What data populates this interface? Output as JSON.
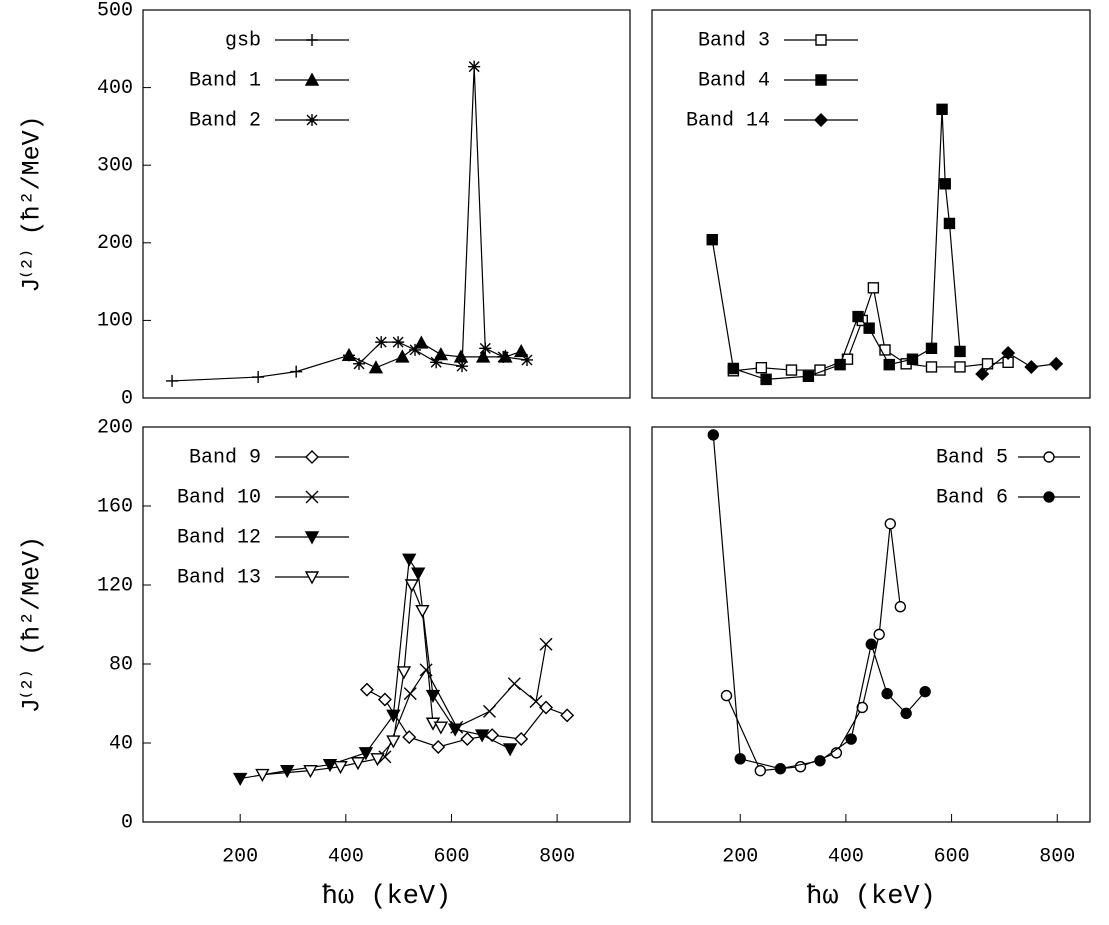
{
  "chart_data": [
    {
      "type": "line",
      "ylabel": "J⁽²⁾ (ħ²/MeV)",
      "xlim": [
        16,
        938
      ],
      "ylim": [
        0,
        500
      ],
      "yticks": [
        0,
        100,
        200,
        300,
        400,
        500
      ],
      "legend": "upper left",
      "series": [
        {
          "name": "gsb",
          "color": "#000000",
          "marker": "plus",
          "x": [
            71,
            234,
            306,
            406
          ],
          "values": [
            22,
            27,
            34,
            55
          ]
        },
        {
          "name": "Band 1",
          "color": "#000000",
          "marker": "triangle",
          "x": [
            406,
            457,
            507,
            543,
            580,
            618,
            660,
            702,
            732
          ],
          "values": [
            55,
            39,
            53,
            71,
            56,
            53,
            53,
            53,
            60
          ]
        },
        {
          "name": "Band 2",
          "color": "#000000",
          "marker": "asterisk",
          "x": [
            425,
            467,
            499,
            531,
            571,
            620,
            643,
            664,
            698,
            743
          ],
          "values": [
            44,
            72,
            72,
            62,
            46,
            41,
            427,
            64,
            53,
            49
          ]
        }
      ]
    },
    {
      "type": "line",
      "xlim": [
        33,
        862
      ],
      "ylim": [
        0,
        500
      ],
      "legend": "upper left",
      "series": [
        {
          "name": "Band 3",
          "color": "#000000",
          "marker": "square-open",
          "x": [
            187,
            240,
            297,
            351,
            403,
            431,
            452,
            474,
            514,
            562,
            616,
            668,
            707
          ],
          "values": [
            35,
            39,
            36,
            36,
            50,
            100,
            142,
            62,
            44,
            40,
            40,
            44,
            46
          ]
        },
        {
          "name": "Band 4",
          "color": "#000000",
          "marker": "square",
          "x": [
            147,
            187,
            249,
            329,
            389,
            423,
            444,
            482,
            526,
            562,
            582,
            588,
            596,
            616
          ],
          "values": [
            204,
            38,
            24,
            28,
            43,
            105,
            90,
            43,
            50,
            64,
            372,
            276,
            225,
            60
          ]
        },
        {
          "name": "Band 14",
          "color": "#000000",
          "marker": "diamond",
          "x": [
            658,
            707,
            751,
            798
          ],
          "values": [
            31,
            58,
            40,
            44
          ]
        }
      ]
    },
    {
      "type": "line",
      "xlabel": "ħω (keV)",
      "ylabel": "J⁽²⁾ (ħ²/MeV)",
      "xlim": [
        16,
        938
      ],
      "ylim": [
        0,
        200
      ],
      "xticks": [
        200,
        400,
        600,
        800
      ],
      "yticks": [
        0,
        40,
        80,
        120,
        160,
        200
      ],
      "legend": "upper left",
      "series": [
        {
          "name": "Band 9",
          "color": "#000000",
          "marker": "diamond-open",
          "x": [
            440,
            474,
            520,
            575,
            630,
            677,
            732,
            779,
            819
          ],
          "values": [
            67,
            62,
            43,
            38,
            42,
            44,
            42,
            58,
            54
          ]
        },
        {
          "name": "Band 10",
          "color": "#000000",
          "marker": "x",
          "x": [
            474,
            522,
            552,
            610,
            672,
            719,
            760,
            779
          ],
          "values": [
            33,
            65,
            77,
            48,
            56,
            70,
            61,
            90
          ]
        },
        {
          "name": "Band 12",
          "color": "#000000",
          "marker": "triangle-down",
          "x": [
            200,
            289,
            370,
            438,
            490,
            520,
            537,
            565,
            607,
            658,
            711
          ],
          "values": [
            22,
            26,
            29,
            35,
            54,
            133,
            126,
            64,
            47,
            44,
            37
          ]
        },
        {
          "name": "Band 13",
          "color": "#000000",
          "marker": "triangle-down-open",
          "x": [
            242,
            333,
            390,
            423,
            460,
            490,
            510,
            525,
            545,
            565,
            580
          ],
          "values": [
            24,
            26,
            28,
            30,
            32,
            41,
            76,
            120,
            107,
            50,
            48
          ]
        }
      ]
    },
    {
      "type": "line",
      "xlabel": "ħω (keV)",
      "xlim": [
        33,
        862
      ],
      "ylim": [
        0,
        200
      ],
      "xticks": [
        200,
        400,
        600,
        800
      ],
      "legend": "upper right",
      "series": [
        {
          "name": "Band 5",
          "color": "#000000",
          "marker": "circle-open",
          "x": [
            174,
            238,
            314,
            382,
            431,
            463,
            484,
            503
          ],
          "values": [
            64,
            26,
            28,
            35,
            58,
            95,
            151,
            109
          ]
        },
        {
          "name": "Band 6",
          "color": "#000000",
          "marker": "circle",
          "x": [
            149,
            200,
            276,
            351,
            410,
            448,
            478,
            514,
            550
          ],
          "values": [
            196,
            32,
            27,
            31,
            42,
            90,
            65,
            55,
            66
          ]
        }
      ]
    }
  ]
}
